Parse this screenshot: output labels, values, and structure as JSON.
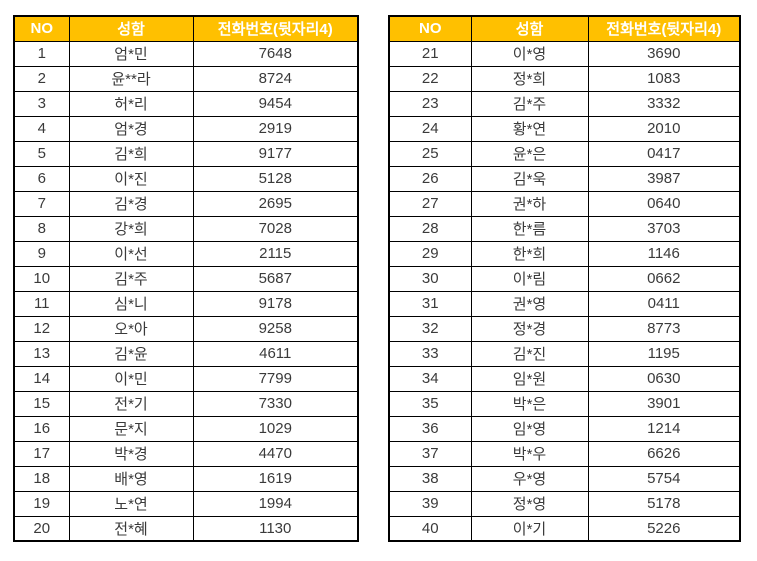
{
  "colors": {
    "header_bg": "#FFC000",
    "header_text": "#FFFFFF",
    "border": "#000000",
    "text": "#3A3A3A"
  },
  "columns": {
    "no": "NO",
    "name": "성함",
    "phone": "전화번호(뒷자리4)"
  },
  "tables": [
    {
      "rows": [
        {
          "no": "1",
          "name": "엄*민",
          "phone": "7648"
        },
        {
          "no": "2",
          "name": "윤**라",
          "phone": "8724"
        },
        {
          "no": "3",
          "name": "허*리",
          "phone": "9454"
        },
        {
          "no": "4",
          "name": "엄*경",
          "phone": "2919"
        },
        {
          "no": "5",
          "name": "김*희",
          "phone": "9177"
        },
        {
          "no": "6",
          "name": "이*진",
          "phone": "5128"
        },
        {
          "no": "7",
          "name": "김*경",
          "phone": "2695"
        },
        {
          "no": "8",
          "name": "강*희",
          "phone": "7028"
        },
        {
          "no": "9",
          "name": "이*선",
          "phone": "2115"
        },
        {
          "no": "10",
          "name": "김*주",
          "phone": "5687"
        },
        {
          "no": "11",
          "name": "심*니",
          "phone": "9178"
        },
        {
          "no": "12",
          "name": "오*아",
          "phone": "9258"
        },
        {
          "no": "13",
          "name": "김*윤",
          "phone": "4611"
        },
        {
          "no": "14",
          "name": "이*민",
          "phone": "7799"
        },
        {
          "no": "15",
          "name": "전*기",
          "phone": "7330"
        },
        {
          "no": "16",
          "name": "문*지",
          "phone": "1029"
        },
        {
          "no": "17",
          "name": "박*경",
          "phone": "4470"
        },
        {
          "no": "18",
          "name": "배*영",
          "phone": "1619"
        },
        {
          "no": "19",
          "name": "노*연",
          "phone": "1994"
        },
        {
          "no": "20",
          "name": "전*혜",
          "phone": "1130"
        }
      ]
    },
    {
      "rows": [
        {
          "no": "21",
          "name": "이*영",
          "phone": "3690"
        },
        {
          "no": "22",
          "name": "정*희",
          "phone": "1083"
        },
        {
          "no": "23",
          "name": "김*주",
          "phone": "3332"
        },
        {
          "no": "24",
          "name": "황*연",
          "phone": "2010"
        },
        {
          "no": "25",
          "name": "윤*은",
          "phone": "0417"
        },
        {
          "no": "26",
          "name": "김*욱",
          "phone": "3987"
        },
        {
          "no": "27",
          "name": "권*하",
          "phone": "0640"
        },
        {
          "no": "28",
          "name": "한*름",
          "phone": "3703"
        },
        {
          "no": "29",
          "name": "한*희",
          "phone": "1146"
        },
        {
          "no": "30",
          "name": "이*림",
          "phone": "0662"
        },
        {
          "no": "31",
          "name": "권*영",
          "phone": "0411"
        },
        {
          "no": "32",
          "name": "정*경",
          "phone": "8773"
        },
        {
          "no": "33",
          "name": "김*진",
          "phone": "1195"
        },
        {
          "no": "34",
          "name": "임*원",
          "phone": "0630"
        },
        {
          "no": "35",
          "name": "박*은",
          "phone": "3901"
        },
        {
          "no": "36",
          "name": "임*영",
          "phone": "1214"
        },
        {
          "no": "37",
          "name": "박*우",
          "phone": "6626"
        },
        {
          "no": "38",
          "name": "우*영",
          "phone": "5754"
        },
        {
          "no": "39",
          "name": "정*영",
          "phone": "5178"
        },
        {
          "no": "40",
          "name": "이*기",
          "phone": "5226"
        }
      ]
    }
  ]
}
